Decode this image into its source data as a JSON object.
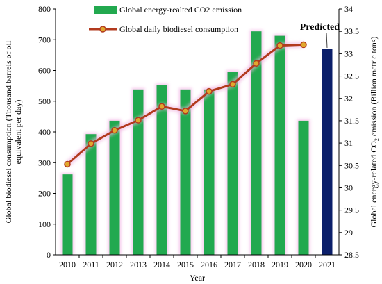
{
  "chart_data": {
    "type": "bar",
    "categories": [
      "2010",
      "2011",
      "2012",
      "2013",
      "2014",
      "2015",
      "2016",
      "2017",
      "2018",
      "2019",
      "2020",
      "2021"
    ],
    "series": [
      {
        "name": "Global energy-realted CO2 emission",
        "axis": "right",
        "kind": "bar",
        "color": "#22a94f",
        "values": [
          30.3,
          31.2,
          31.5,
          32.2,
          32.3,
          32.2,
          32.2,
          32.6,
          33.5,
          33.4,
          31.5,
          33.1
        ]
      },
      {
        "name": "Global daily biodiesel consumption",
        "axis": "left",
        "kind": "line",
        "color": "#b23a1e",
        "marker_color": "#e0a82e",
        "values": [
          295,
          362,
          405,
          438,
          483,
          468,
          532,
          555,
          623,
          681,
          684,
          null
        ]
      }
    ],
    "predicted_index": 11,
    "predicted_color": "#0b1f6a",
    "predicted_label": "Predicted",
    "xlabel": "Year",
    "ylabel_left": "Global biodiesel consumption (Thousand barrels of oil equivalent per day)",
    "ylabel_left_lines": [
      "Global biodiesel consumption (Thousand barrels of oil",
      "equivalent per day)"
    ],
    "ylabel_right": "Global energy-related CO₂ emission (Billion metric tons)",
    "ylim_left": [
      0,
      800
    ],
    "yticks_left": [
      0,
      100,
      200,
      300,
      400,
      500,
      600,
      700,
      800
    ],
    "ylim_right": [
      28.5,
      34
    ],
    "yticks_right": [
      "28.5",
      "29",
      "29.5",
      "30",
      "30.5",
      "31",
      "31.5",
      "32",
      "32.5",
      "33",
      "33.5",
      "34"
    ],
    "grid": false,
    "legend_position": "top-left"
  }
}
